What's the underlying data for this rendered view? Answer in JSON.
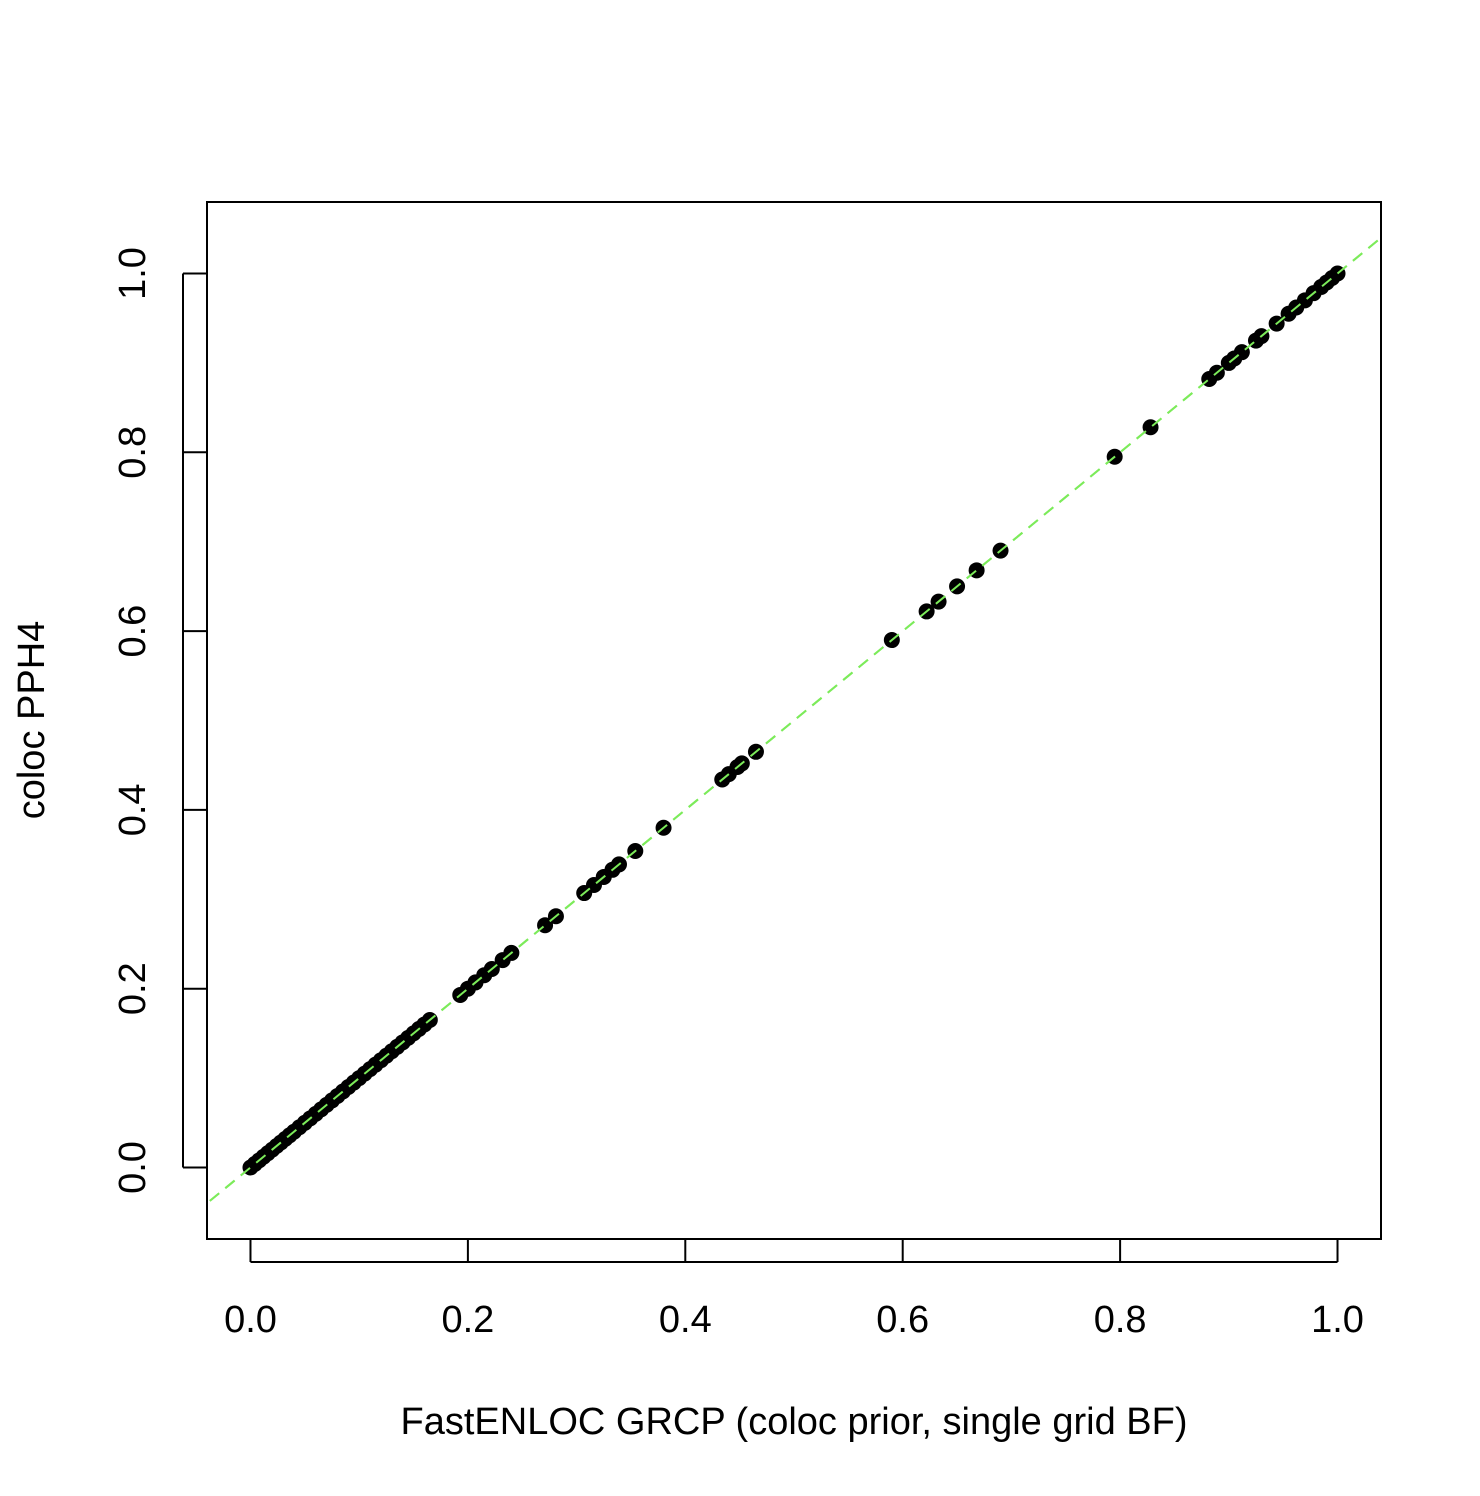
{
  "chart_data": {
    "type": "scatter",
    "title": "",
    "xlabel": "FastENLOC GRCP (coloc prior, single grid BF)",
    "ylabel": "coloc PPH4",
    "xlim": [
      -0.04,
      1.04
    ],
    "ylim": [
      -0.08,
      1.08
    ],
    "xticks": [
      0.0,
      0.2,
      0.4,
      0.6,
      0.8,
      1.0
    ],
    "xtick_labels": [
      "0.0",
      "0.2",
      "0.4",
      "0.6",
      "0.8",
      "1.0"
    ],
    "yticks": [
      0.0,
      0.2,
      0.4,
      0.6,
      0.8,
      1.0
    ],
    "ytick_labels": [
      "0.0",
      "0.2",
      "0.4",
      "0.6",
      "0.8",
      "1.0"
    ],
    "grid": false,
    "reference_line": {
      "slope": 1,
      "intercept": 0,
      "style": "dashed",
      "color": "#7CEB5A"
    },
    "point_color": "#000000",
    "x": [
      0.0,
      0.004,
      0.008,
      0.012,
      0.016,
      0.02,
      0.024,
      0.028,
      0.032,
      0.036,
      0.04,
      0.045,
      0.05,
      0.055,
      0.06,
      0.065,
      0.07,
      0.075,
      0.08,
      0.085,
      0.09,
      0.095,
      0.1,
      0.105,
      0.11,
      0.115,
      0.12,
      0.125,
      0.13,
      0.135,
      0.14,
      0.145,
      0.15,
      0.155,
      0.16,
      0.165,
      0.193,
      0.2,
      0.207,
      0.215,
      0.222,
      0.232,
      0.24,
      0.271,
      0.281,
      0.307,
      0.316,
      0.325,
      0.333,
      0.339,
      0.354,
      0.38,
      0.434,
      0.44,
      0.448,
      0.452,
      0.465,
      0.59,
      0.622,
      0.633,
      0.65,
      0.668,
      0.69,
      0.795,
      0.828,
      0.882,
      0.889,
      0.9,
      0.905,
      0.912,
      0.925,
      0.93,
      0.944,
      0.955,
      0.962,
      0.97,
      0.978,
      0.985,
      0.99,
      0.995,
      1.0
    ],
    "y": [
      0.0,
      0.004,
      0.008,
      0.012,
      0.016,
      0.02,
      0.024,
      0.028,
      0.032,
      0.036,
      0.04,
      0.045,
      0.05,
      0.055,
      0.06,
      0.065,
      0.07,
      0.075,
      0.08,
      0.085,
      0.09,
      0.095,
      0.1,
      0.105,
      0.11,
      0.115,
      0.12,
      0.125,
      0.13,
      0.135,
      0.14,
      0.145,
      0.15,
      0.155,
      0.16,
      0.165,
      0.193,
      0.2,
      0.207,
      0.215,
      0.222,
      0.232,
      0.24,
      0.271,
      0.281,
      0.307,
      0.316,
      0.325,
      0.333,
      0.339,
      0.354,
      0.38,
      0.434,
      0.44,
      0.448,
      0.452,
      0.465,
      0.59,
      0.622,
      0.633,
      0.65,
      0.668,
      0.69,
      0.795,
      0.828,
      0.882,
      0.889,
      0.9,
      0.905,
      0.912,
      0.925,
      0.93,
      0.944,
      0.955,
      0.962,
      0.97,
      0.978,
      0.985,
      0.99,
      0.995,
      1.0
    ]
  }
}
